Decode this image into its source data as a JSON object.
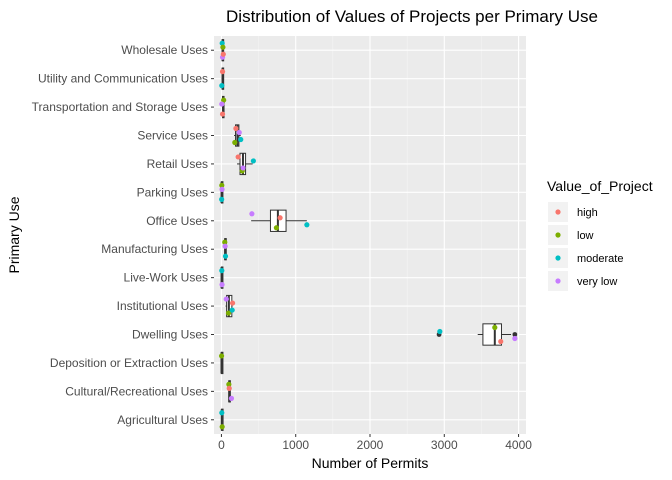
{
  "chart_data": {
    "type": "boxplot-with-points",
    "orientation": "horizontal",
    "title": "Distribution of Values of Projects per Primary Use",
    "xlabel": "Number of Permits",
    "ylabel": "Primary Use",
    "xlim": [
      -100,
      4100
    ],
    "x_ticks": [
      0,
      1000,
      2000,
      3000,
      4000
    ],
    "categories": [
      "Agricultural Uses",
      "Cultural/Recreational Uses",
      "Deposition or Extraction Uses",
      "Dwelling Uses",
      "Institutional Uses",
      "Live-Work Uses",
      "Manufacturing Uses",
      "Office Uses",
      "Parking Uses",
      "Retail Uses",
      "Service Uses",
      "Transportation and Storage Uses",
      "Utility and Communication Uses",
      "Wholesale Uses"
    ],
    "legend": {
      "title": "Value_of_Project",
      "position": "right",
      "entries": [
        {
          "label": "high",
          "color": "#F8766D"
        },
        {
          "label": "low",
          "color": "#7CAE00"
        },
        {
          "label": "moderate",
          "color": "#00BFC4"
        },
        {
          "label": "very low",
          "color": "#C77CFF"
        }
      ]
    },
    "boxes": [
      {
        "category": "Agricultural Uses",
        "min": 0,
        "q1": 2,
        "median": 5,
        "q3": 8,
        "max": 10
      },
      {
        "category": "Cultural/Recreational Uses",
        "min": 95,
        "q1": 100,
        "median": 105,
        "q3": 115,
        "max": 120
      },
      {
        "category": "Deposition or Extraction Uses",
        "min": 0,
        "q1": 0,
        "median": 1,
        "q3": 2,
        "max": 3
      },
      {
        "category": "Dwelling Uses",
        "min": 3450,
        "q1": 3520,
        "median": 3680,
        "q3": 3770,
        "max": 3900,
        "outliers": [
          2930,
          3950
        ]
      },
      {
        "category": "Institutional Uses",
        "min": 55,
        "q1": 70,
        "median": 100,
        "q3": 140,
        "max": 150
      },
      {
        "category": "Live-Work Uses",
        "min": 0,
        "q1": 0,
        "median": 2,
        "q3": 5,
        "max": 8
      },
      {
        "category": "Manufacturing Uses",
        "min": 40,
        "q1": 45,
        "median": 50,
        "q3": 55,
        "max": 60
      },
      {
        "category": "Office Uses",
        "min": 400,
        "q1": 660,
        "median": 760,
        "q3": 870,
        "max": 1150
      },
      {
        "category": "Parking Uses",
        "min": 0,
        "q1": 0,
        "median": 2,
        "q3": 5,
        "max": 10
      },
      {
        "category": "Retail Uses",
        "min": 210,
        "q1": 250,
        "median": 290,
        "q3": 325,
        "max": 420
      },
      {
        "category": "Service Uses",
        "min": 170,
        "q1": 190,
        "median": 215,
        "q3": 235,
        "max": 260
      },
      {
        "category": "Transportation and Storage Uses",
        "min": 10,
        "q1": 15,
        "median": 25,
        "q3": 30,
        "max": 35
      },
      {
        "category": "Utility and Communication Uses",
        "min": 5,
        "q1": 10,
        "median": 15,
        "q3": 20,
        "max": 25
      },
      {
        "category": "Wholesale Uses",
        "min": 5,
        "q1": 10,
        "median": 15,
        "q3": 25,
        "max": 30
      }
    ],
    "points": [
      {
        "category": "Agricultural Uses",
        "value_of_project": "moderate",
        "x": 5
      },
      {
        "category": "Agricultural Uses",
        "value_of_project": "low",
        "x": 10
      },
      {
        "category": "Cultural/Recreational Uses",
        "value_of_project": "low",
        "x": 100
      },
      {
        "category": "Cultural/Recreational Uses",
        "value_of_project": "very low",
        "x": 135
      },
      {
        "category": "Cultural/Recreational Uses",
        "value_of_project": "high",
        "x": 105
      },
      {
        "category": "Deposition or Extraction Uses",
        "value_of_project": "low",
        "x": 2
      },
      {
        "category": "Dwelling Uses",
        "value_of_project": "low",
        "x": 3680
      },
      {
        "category": "Dwelling Uses",
        "value_of_project": "high",
        "x": 3760
      },
      {
        "category": "Dwelling Uses",
        "value_of_project": "moderate",
        "x": 2940
      },
      {
        "category": "Dwelling Uses",
        "value_of_project": "very low",
        "x": 3950
      },
      {
        "category": "Institutional Uses",
        "value_of_project": "very low",
        "x": 65
      },
      {
        "category": "Institutional Uses",
        "value_of_project": "low",
        "x": 95
      },
      {
        "category": "Institutional Uses",
        "value_of_project": "high",
        "x": 150
      },
      {
        "category": "Institutional Uses",
        "value_of_project": "moderate",
        "x": 145
      },
      {
        "category": "Live-Work Uses",
        "value_of_project": "moderate",
        "x": 5
      },
      {
        "category": "Live-Work Uses",
        "value_of_project": "very low",
        "x": 8
      },
      {
        "category": "Manufacturing Uses",
        "value_of_project": "low",
        "x": 45
      },
      {
        "category": "Manufacturing Uses",
        "value_of_project": "moderate",
        "x": 55
      },
      {
        "category": "Manufacturing Uses",
        "value_of_project": "very low",
        "x": 50
      },
      {
        "category": "Office Uses",
        "value_of_project": "very low",
        "x": 410
      },
      {
        "category": "Office Uses",
        "value_of_project": "low",
        "x": 740
      },
      {
        "category": "Office Uses",
        "value_of_project": "high",
        "x": 790
      },
      {
        "category": "Office Uses",
        "value_of_project": "moderate",
        "x": 1150
      },
      {
        "category": "Parking Uses",
        "value_of_project": "low",
        "x": 5
      },
      {
        "category": "Parking Uses",
        "value_of_project": "moderate",
        "x": 3
      },
      {
        "category": "Parking Uses",
        "value_of_project": "very low",
        "x": 8
      },
      {
        "category": "Retail Uses",
        "value_of_project": "high",
        "x": 225
      },
      {
        "category": "Retail Uses",
        "value_of_project": "low",
        "x": 280
      },
      {
        "category": "Retail Uses",
        "value_of_project": "moderate",
        "x": 430
      },
      {
        "category": "Retail Uses",
        "value_of_project": "very low",
        "x": 290
      },
      {
        "category": "Service Uses",
        "value_of_project": "high",
        "x": 195
      },
      {
        "category": "Service Uses",
        "value_of_project": "low",
        "x": 180
      },
      {
        "category": "Service Uses",
        "value_of_project": "very low",
        "x": 240
      },
      {
        "category": "Service Uses",
        "value_of_project": "moderate",
        "x": 260
      },
      {
        "category": "Transportation and Storage Uses",
        "value_of_project": "low",
        "x": 30
      },
      {
        "category": "Transportation and Storage Uses",
        "value_of_project": "high",
        "x": 15
      },
      {
        "category": "Transportation and Storage Uses",
        "value_of_project": "very low",
        "x": 5
      },
      {
        "category": "Utility and Communication Uses",
        "value_of_project": "high",
        "x": 15
      },
      {
        "category": "Utility and Communication Uses",
        "value_of_project": "moderate",
        "x": 5
      },
      {
        "category": "Wholesale Uses",
        "value_of_project": "moderate",
        "x": 10
      },
      {
        "category": "Wholesale Uses",
        "value_of_project": "very low",
        "x": 15
      },
      {
        "category": "Wholesale Uses",
        "value_of_project": "low",
        "x": 20
      },
      {
        "category": "Wholesale Uses",
        "value_of_project": "high",
        "x": 25
      }
    ],
    "grid": true
  }
}
